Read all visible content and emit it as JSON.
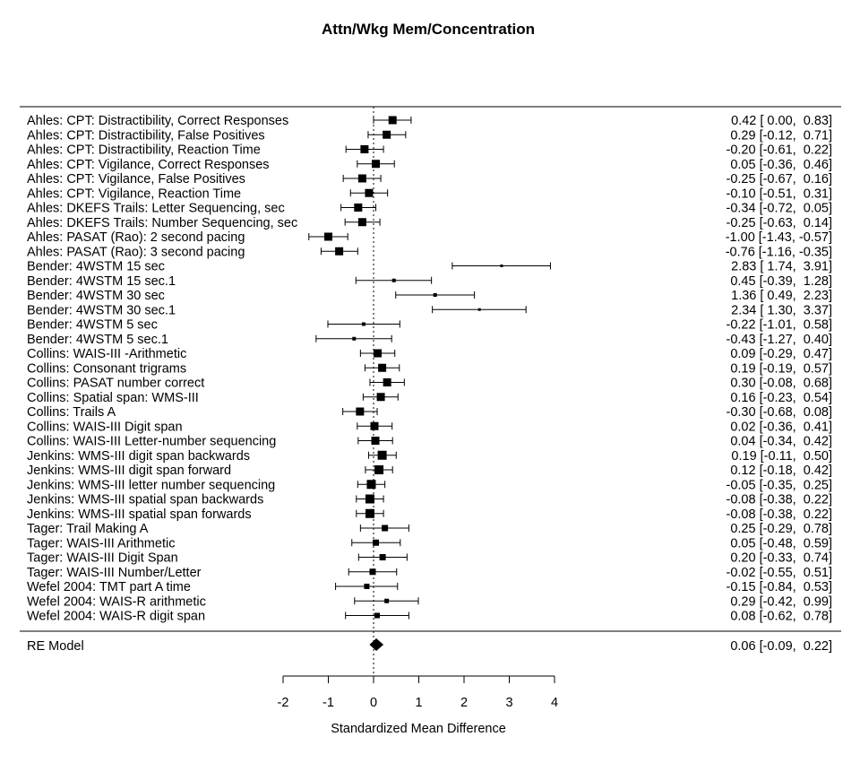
{
  "title": "Attn/Wkg Mem/Concentration",
  "xlabel": "Standardized Mean Difference",
  "summary_label": "RE Model",
  "summary_text": "0.06 [-0.09,  0.22]",
  "chart_data": {
    "type": "forest",
    "title": "Attn/Wkg Mem/Concentration",
    "xlabel": "Standardized Mean Difference",
    "xlim": [
      -2,
      4
    ],
    "xticks": [
      -2,
      -1,
      0,
      1,
      2,
      3,
      4
    ],
    "reference_line": 0,
    "studies": [
      {
        "label": "Ahles: CPT: Distractibility, Correct Responses",
        "est": 0.42,
        "lo": 0.0,
        "hi": 0.83,
        "text": "0.42 [ 0.00,  0.83]",
        "size": 9
      },
      {
        "label": "Ahles: CPT: Distractibility, False Positives",
        "est": 0.29,
        "lo": -0.12,
        "hi": 0.71,
        "text": "0.29 [-0.12,  0.71]",
        "size": 9
      },
      {
        "label": "Ahles: CPT: Distractibility, Reaction Time",
        "est": -0.2,
        "lo": -0.61,
        "hi": 0.22,
        "text": "-0.20 [-0.61,  0.22]",
        "size": 9
      },
      {
        "label": "Ahles: CPT: Vigilance, Correct Responses",
        "est": 0.05,
        "lo": -0.36,
        "hi": 0.46,
        "text": "0.05 [-0.36,  0.46]",
        "size": 9
      },
      {
        "label": "Ahles: CPT: Vigilance, False Positives",
        "est": -0.25,
        "lo": -0.67,
        "hi": 0.16,
        "text": "-0.25 [-0.67,  0.16]",
        "size": 9
      },
      {
        "label": "Ahles: CPT: Vigilance, Reaction Time",
        "est": -0.1,
        "lo": -0.51,
        "hi": 0.31,
        "text": "-0.10 [-0.51,  0.31]",
        "size": 9
      },
      {
        "label": "Ahles: DKEFS Trails: Letter Sequencing, sec",
        "est": -0.34,
        "lo": -0.72,
        "hi": 0.05,
        "text": "-0.34 [-0.72,  0.05]",
        "size": 9
      },
      {
        "label": "Ahles: DKEFS Trails: Number Sequencing, sec",
        "est": -0.25,
        "lo": -0.63,
        "hi": 0.14,
        "text": "-0.25 [-0.63,  0.14]",
        "size": 9
      },
      {
        "label": "Ahles: PASAT (Rao): 2 second pacing",
        "est": -1.0,
        "lo": -1.43,
        "hi": -0.57,
        "text": "-1.00 [-1.43, -0.57]",
        "size": 9
      },
      {
        "label": "Ahles: PASAT (Rao): 3 second pacing",
        "est": -0.76,
        "lo": -1.16,
        "hi": -0.35,
        "text": "-0.76 [-1.16, -0.35]",
        "size": 9
      },
      {
        "label": "Bender: 4WSTM 15 sec",
        "est": 2.83,
        "lo": 1.74,
        "hi": 3.91,
        "text": "2.83 [ 1.74,  3.91]",
        "size": 3
      },
      {
        "label": "Bender: 4WSTM 15 sec.1",
        "est": 0.45,
        "lo": -0.39,
        "hi": 1.28,
        "text": "0.45 [-0.39,  1.28]",
        "size": 4
      },
      {
        "label": "Bender: 4WSTM 30 sec",
        "est": 1.36,
        "lo": 0.49,
        "hi": 2.23,
        "text": "1.36 [ 0.49,  2.23]",
        "size": 4
      },
      {
        "label": "Bender: 4WSTM 30 sec.1",
        "est": 2.34,
        "lo": 1.3,
        "hi": 3.37,
        "text": "2.34 [ 1.30,  3.37]",
        "size": 3
      },
      {
        "label": "Bender: 4WSTM 5 sec",
        "est": -0.22,
        "lo": -1.01,
        "hi": 0.58,
        "text": "-0.22 [-1.01,  0.58]",
        "size": 4
      },
      {
        "label": "Bender: 4WSTM 5 sec.1",
        "est": -0.43,
        "lo": -1.27,
        "hi": 0.4,
        "text": "-0.43 [-1.27,  0.40]",
        "size": 4
      },
      {
        "label": "Collins:  WAIS-III -Arithmetic",
        "est": 0.09,
        "lo": -0.29,
        "hi": 0.47,
        "text": "0.09 [-0.29,  0.47]",
        "size": 9
      },
      {
        "label": "Collins: Consonant trigrams",
        "est": 0.19,
        "lo": -0.19,
        "hi": 0.57,
        "text": "0.19 [-0.19,  0.57]",
        "size": 9
      },
      {
        "label": "Collins: PASAT number correct",
        "est": 0.3,
        "lo": -0.08,
        "hi": 0.68,
        "text": "0.30 [-0.08,  0.68]",
        "size": 9
      },
      {
        "label": "Collins: Spatial span: WMS-III",
        "est": 0.16,
        "lo": -0.23,
        "hi": 0.54,
        "text": "0.16 [-0.23,  0.54]",
        "size": 9
      },
      {
        "label": "Collins: Trails A",
        "est": -0.3,
        "lo": -0.68,
        "hi": 0.08,
        "text": "-0.30 [-0.68,  0.08]",
        "size": 9
      },
      {
        "label": "Collins: WAIS-III Digit span",
        "est": 0.02,
        "lo": -0.36,
        "hi": 0.41,
        "text": "0.02 [-0.36,  0.41]",
        "size": 9
      },
      {
        "label": "Collins: WAIS-III Letter-number sequencing",
        "est": 0.04,
        "lo": -0.34,
        "hi": 0.42,
        "text": "0.04 [-0.34,  0.42]",
        "size": 9
      },
      {
        "label": "Jenkins: WMS-III digit span backwards",
        "est": 0.19,
        "lo": -0.11,
        "hi": 0.5,
        "text": "0.19 [-0.11,  0.50]",
        "size": 10
      },
      {
        "label": "Jenkins: WMS-III digit span forward",
        "est": 0.12,
        "lo": -0.18,
        "hi": 0.42,
        "text": "0.12 [-0.18,  0.42]",
        "size": 10
      },
      {
        "label": "Jenkins: WMS-III letter number sequencing",
        "est": -0.05,
        "lo": -0.35,
        "hi": 0.25,
        "text": "-0.05 [-0.35,  0.25]",
        "size": 10
      },
      {
        "label": "Jenkins: WMS-III spatial span backwards",
        "est": -0.08,
        "lo": -0.38,
        "hi": 0.22,
        "text": "-0.08 [-0.38,  0.22]",
        "size": 10
      },
      {
        "label": "Jenkins: WMS-III spatial span forwards",
        "est": -0.08,
        "lo": -0.38,
        "hi": 0.22,
        "text": "-0.08 [-0.38,  0.22]",
        "size": 10
      },
      {
        "label": "Tager: Trail Making A",
        "est": 0.25,
        "lo": -0.29,
        "hi": 0.78,
        "text": "0.25 [-0.29,  0.78]",
        "size": 7
      },
      {
        "label": "Tager: WAIS-III Arithmetic",
        "est": 0.05,
        "lo": -0.48,
        "hi": 0.59,
        "text": "0.05 [-0.48,  0.59]",
        "size": 7
      },
      {
        "label": "Tager: WAIS-III Digit Span",
        "est": 0.2,
        "lo": -0.33,
        "hi": 0.74,
        "text": "0.20 [-0.33,  0.74]",
        "size": 7
      },
      {
        "label": "Tager: WAIS-III Number/Letter",
        "est": -0.02,
        "lo": -0.55,
        "hi": 0.51,
        "text": "-0.02 [-0.55,  0.51]",
        "size": 7
      },
      {
        "label": "Wefel 2004: TMT part A time",
        "est": -0.15,
        "lo": -0.84,
        "hi": 0.53,
        "text": "-0.15 [-0.84,  0.53]",
        "size": 6
      },
      {
        "label": "Wefel 2004: WAIS-R arithmetic",
        "est": 0.29,
        "lo": -0.42,
        "hi": 0.99,
        "text": "0.29 [-0.42,  0.99]",
        "size": 5
      },
      {
        "label": "Wefel 2004: WAIS-R digit span",
        "est": 0.08,
        "lo": -0.62,
        "hi": 0.78,
        "text": "0.08 [-0.62,  0.78]",
        "size": 6
      }
    ],
    "summary": {
      "label": "RE Model",
      "est": 0.06,
      "lo": -0.09,
      "hi": 0.22,
      "text": "0.06 [-0.09,  0.22]"
    }
  }
}
